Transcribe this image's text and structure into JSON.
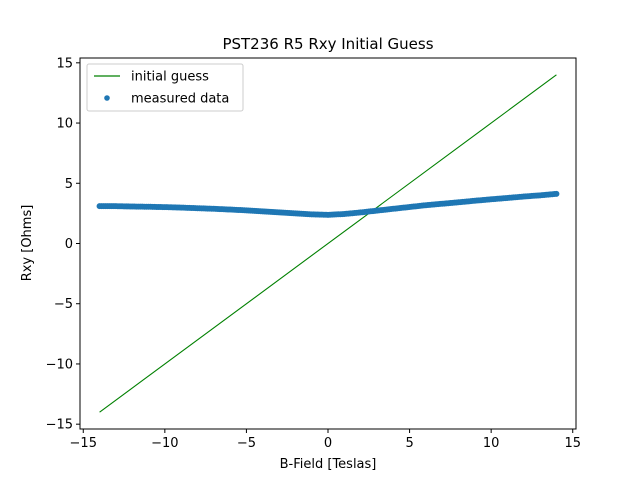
{
  "chart_data": {
    "type": "scatter",
    "title": "PST236 R5 Rxy Initial Guess",
    "xlabel": "B-Field [Teslas]",
    "ylabel": "Rxy [Ohms]",
    "xlim": [
      -15.2,
      15.2
    ],
    "ylim": [
      -15.4,
      15.4
    ],
    "xticks": [
      -15,
      -10,
      -5,
      0,
      5,
      10,
      15
    ],
    "yticks": [
      -15,
      -10,
      -5,
      0,
      5,
      10,
      15
    ],
    "xtick_labels": [
      "−15",
      "−10",
      "−5",
      "0",
      "5",
      "10",
      "15"
    ],
    "ytick_labels": [
      "−15",
      "−10",
      "−5",
      "0",
      "5",
      "10",
      "15"
    ],
    "grid": false,
    "legend_position": "top-left",
    "series": [
      {
        "name": "initial guess",
        "kind": "line",
        "color": "#008000",
        "x": [
          -14,
          14
        ],
        "y": [
          -14,
          14
        ]
      },
      {
        "name": "measured data",
        "kind": "scatter",
        "color": "#1f77b4",
        "x": [
          -14,
          -13,
          -12,
          -11,
          -10,
          -9,
          -8,
          -7,
          -6,
          -5,
          -4,
          -3,
          -2,
          -1,
          0,
          1,
          2,
          3,
          4,
          5,
          6,
          7,
          8,
          9,
          10,
          11,
          12,
          13,
          14
        ],
        "y": [
          3.1,
          3.1,
          3.07,
          3.05,
          3.02,
          2.98,
          2.93,
          2.88,
          2.82,
          2.75,
          2.67,
          2.58,
          2.5,
          2.42,
          2.38,
          2.45,
          2.58,
          2.73,
          2.88,
          3.03,
          3.18,
          3.3,
          3.42,
          3.55,
          3.67,
          3.78,
          3.9,
          4.0,
          4.12
        ]
      }
    ]
  }
}
